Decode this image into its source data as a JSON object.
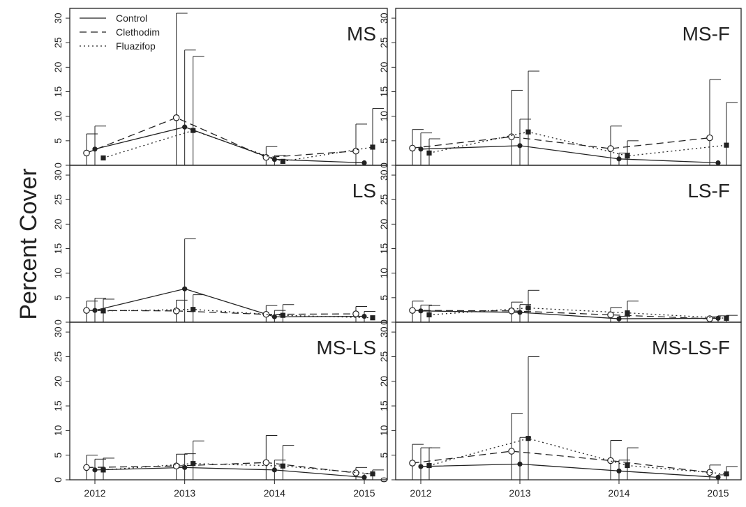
{
  "figure": {
    "ylabel": "Percent Cover",
    "legend": {
      "placement": "top-left of first panel",
      "entries": [
        {
          "name": "Control",
          "line": "solid",
          "marker": "filled circle"
        },
        {
          "name": "Clethodim",
          "line": "dashed",
          "marker": "open circle"
        },
        {
          "name": "Fluazifop",
          "line": "dotted",
          "marker": "filled square"
        }
      ]
    }
  },
  "chart_data": [
    {
      "type": "line",
      "panel": "MS",
      "title": "MS",
      "x": [
        "2012",
        "2013",
        "2014",
        "2015"
      ],
      "ylim": [
        0,
        32
      ],
      "yticks": [
        "0",
        "5",
        "10",
        "15",
        "20",
        "25",
        "30"
      ],
      "series": [
        {
          "name": "Control",
          "values": [
            3.3,
            7.8,
            1.2,
            0.5
          ],
          "err_upper": [
            8.0,
            23.5,
            2.0,
            0.5
          ]
        },
        {
          "name": "Clethodim",
          "values": [
            2.5,
            9.7,
            1.6,
            2.9
          ],
          "err_upper": [
            6.4,
            31.0,
            3.8,
            8.4
          ]
        },
        {
          "name": "Fluazifop",
          "values": [
            1.5,
            7.1,
            0.8,
            3.7
          ],
          "err_upper": [
            1.5,
            22.2,
            0.8,
            11.6
          ]
        }
      ]
    },
    {
      "type": "line",
      "panel": "MS-F",
      "title": "MS-F",
      "x": [
        "2012",
        "2013",
        "2014",
        "2015"
      ],
      "ylim": [
        0,
        32
      ],
      "yticks": [
        "0",
        "5",
        "10",
        "15",
        "20",
        "25",
        "30"
      ],
      "series": [
        {
          "name": "Control",
          "values": [
            3.3,
            4.0,
            1.3,
            0.5
          ],
          "err_upper": [
            6.6,
            9.4,
            2.5,
            0.5
          ]
        },
        {
          "name": "Clethodim",
          "values": [
            3.5,
            5.8,
            3.4,
            5.6
          ],
          "err_upper": [
            7.3,
            15.3,
            8.0,
            17.5
          ]
        },
        {
          "name": "Fluazifop",
          "values": [
            2.5,
            6.8,
            1.9,
            4.1
          ],
          "err_upper": [
            5.4,
            19.2,
            5.0,
            12.8
          ]
        }
      ]
    },
    {
      "type": "line",
      "panel": "LS",
      "title": "LS",
      "x": [
        "2012",
        "2013",
        "2014",
        "2015"
      ],
      "ylim": [
        0,
        32
      ],
      "yticks": [
        "0",
        "5",
        "10",
        "15",
        "20",
        "25",
        "30"
      ],
      "series": [
        {
          "name": "Control",
          "values": [
            2.4,
            6.8,
            1.1,
            1.2
          ],
          "err_upper": [
            4.9,
            17.0,
            2.4,
            2.2
          ]
        },
        {
          "name": "Clethodim",
          "values": [
            2.4,
            2.3,
            1.6,
            1.7
          ],
          "err_upper": [
            4.3,
            4.5,
            3.4,
            3.2
          ]
        },
        {
          "name": "Fluazifop",
          "values": [
            2.3,
            2.6,
            1.4,
            0.9
          ],
          "err_upper": [
            4.7,
            5.6,
            3.6,
            0.9
          ]
        }
      ]
    },
    {
      "type": "line",
      "panel": "LS-F",
      "title": "LS-F",
      "x": [
        "2012",
        "2013",
        "2014",
        "2015"
      ],
      "ylim": [
        0,
        32
      ],
      "yticks": [
        "0",
        "5",
        "10",
        "15",
        "20",
        "25",
        "30"
      ],
      "series": [
        {
          "name": "Control",
          "values": [
            2.3,
            2.0,
            0.7,
            0.8
          ],
          "err_upper": [
            3.5,
            3.6,
            1.2,
            1.3
          ]
        },
        {
          "name": "Clethodim",
          "values": [
            2.4,
            2.3,
            1.5,
            0.7
          ],
          "err_upper": [
            4.3,
            4.1,
            3.0,
            1.1
          ]
        },
        {
          "name": "Fluazifop",
          "values": [
            1.5,
            2.9,
            1.9,
            0.8
          ],
          "err_upper": [
            3.4,
            6.5,
            4.3,
            1.4
          ]
        }
      ]
    },
    {
      "type": "line",
      "panel": "MS-LS",
      "title": "MS-LS",
      "x": [
        "2012",
        "2013",
        "2014",
        "2015"
      ],
      "ylim": [
        0,
        32
      ],
      "yticks": [
        "0",
        "5",
        "10",
        "15",
        "20",
        "25",
        "30"
      ],
      "series": [
        {
          "name": "Control",
          "values": [
            2.0,
            2.5,
            2.0,
            0.5
          ],
          "err_upper": [
            4.2,
            5.3,
            4.0,
            1.2
          ]
        },
        {
          "name": "Clethodim",
          "values": [
            2.5,
            2.8,
            3.5,
            1.4
          ],
          "err_upper": [
            5.0,
            5.2,
            9.0,
            2.5
          ]
        },
        {
          "name": "Fluazifop",
          "values": [
            2.0,
            3.3,
            2.8,
            1.2
          ],
          "err_upper": [
            4.4,
            7.9,
            7.0,
            2.0
          ]
        }
      ]
    },
    {
      "type": "line",
      "panel": "MS-LS-F",
      "title": "MS-LS-F",
      "x": [
        "2012",
        "2013",
        "2014",
        "2015"
      ],
      "ylim": [
        0,
        32
      ],
      "yticks": [
        "0",
        "5",
        "10",
        "15",
        "20",
        "25",
        "30"
      ],
      "series": [
        {
          "name": "Control",
          "values": [
            2.7,
            3.2,
            1.8,
            0.5
          ],
          "err_upper": [
            6.5,
            8.6,
            4.0,
            1.0
          ]
        },
        {
          "name": "Clethodim",
          "values": [
            3.4,
            5.8,
            3.9,
            1.5
          ],
          "err_upper": [
            7.2,
            13.5,
            8.0,
            3.0
          ]
        },
        {
          "name": "Fluazifop",
          "values": [
            2.9,
            8.4,
            2.9,
            1.2
          ],
          "err_upper": [
            6.5,
            25.0,
            6.5,
            2.7
          ]
        }
      ]
    }
  ]
}
